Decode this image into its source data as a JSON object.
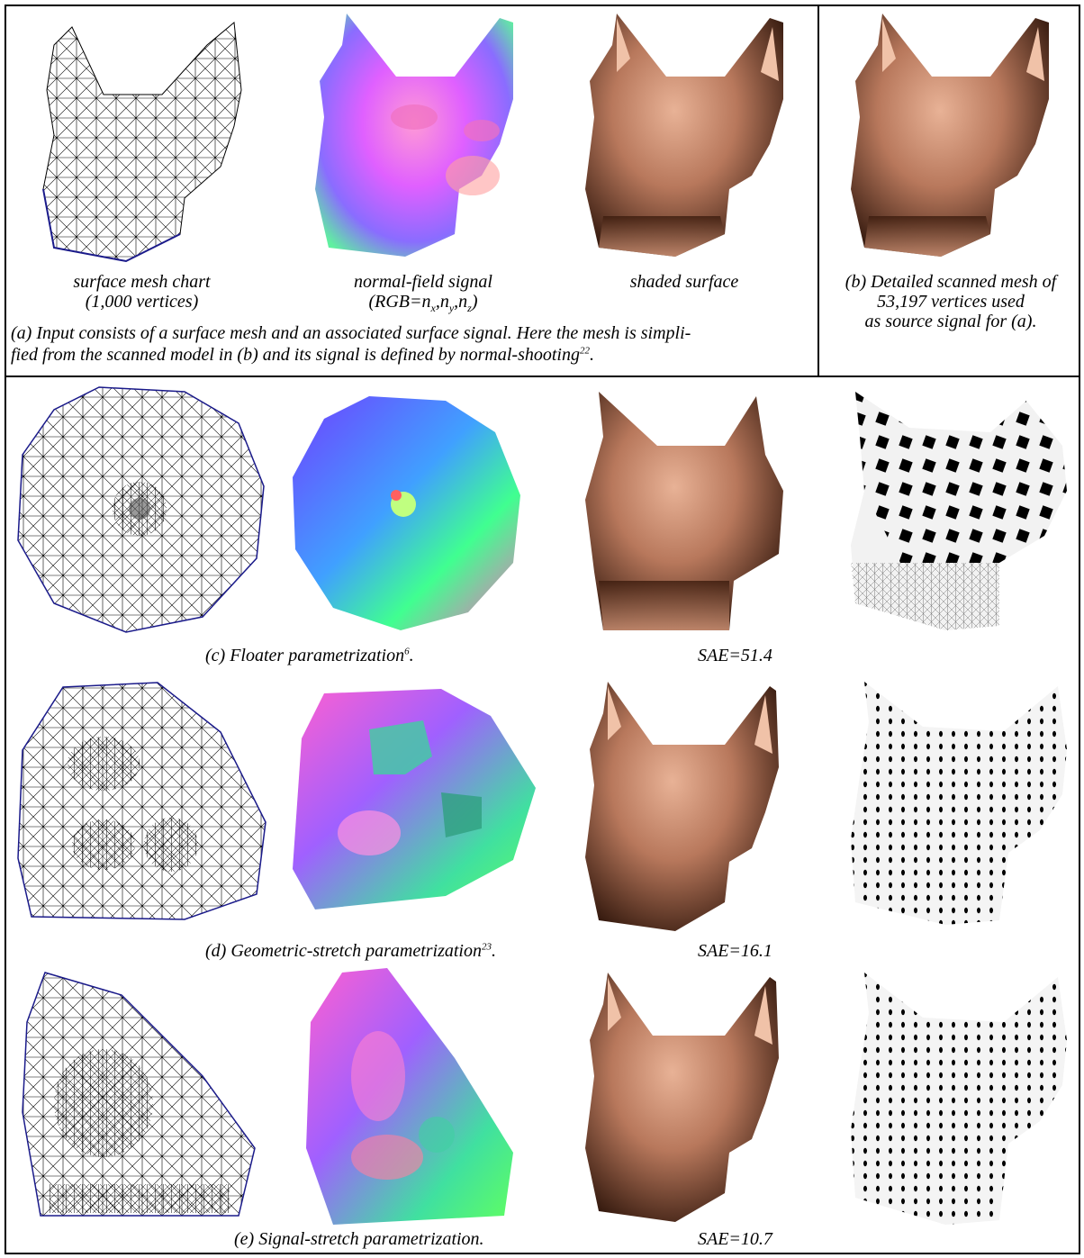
{
  "panel_a": {
    "caption_mesh_line1": "surface mesh chart",
    "caption_mesh_line2": "(1,000 vertices)",
    "caption_normal_line1": "normal-field signal",
    "caption_normal_line2_prefix": "(RGB=n",
    "caption_normal_x": "x",
    "caption_normal_y": "y",
    "caption_normal_z": "z",
    "caption_shaded": "shaded surface",
    "caption_main_line1": "(a) Input consists of a surface mesh and an associated surface signal.   Here the mesh is simpli-",
    "caption_main_line2": "fied from the scanned model in (b) and its signal is defined by normal-shooting",
    "caption_main_ref": "22"
  },
  "panel_b": {
    "caption_line1": "(b) Detailed scanned mesh of",
    "caption_line2": "53,197 vertices used",
    "caption_line3": "as source signal for (a)."
  },
  "panel_c": {
    "caption": "(c) Floater parametrization",
    "ref": "6",
    "sae": "SAE=51.4"
  },
  "panel_d": {
    "caption": "(d) Geometric-stretch parametrization",
    "ref": "23",
    "sae": "SAE=16.1"
  },
  "panel_e": {
    "caption": "(e) Signal-stretch parametrization.",
    "sae": "SAE=10.7"
  },
  "colors": {
    "skin": "#b8785c",
    "skin_dark": "#2a1208",
    "skin_light": "#f0c2a8",
    "mesh_edge": "#1a1a8a"
  }
}
